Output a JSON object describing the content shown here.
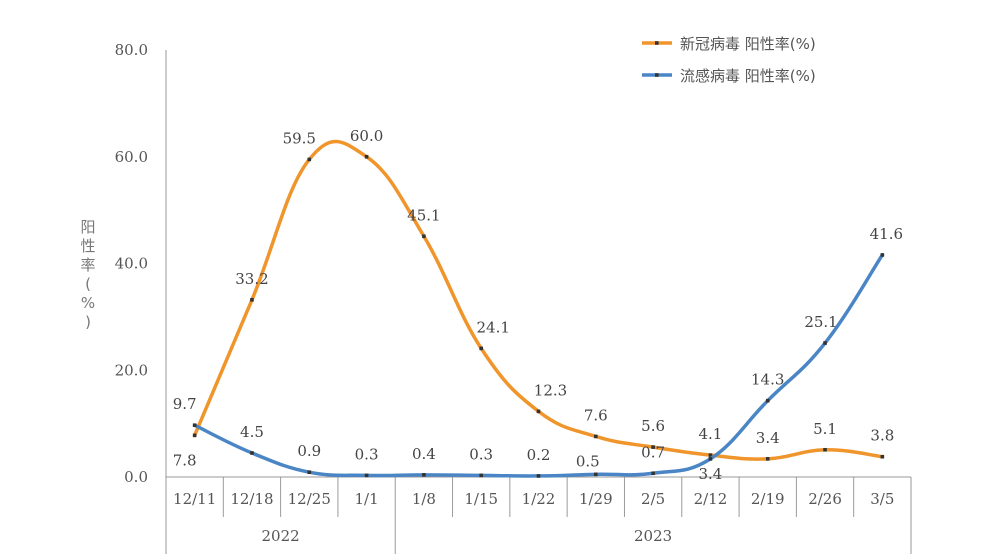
{
  "chart_data": {
    "type": "line",
    "categories": [
      "12/11",
      "12/18",
      "12/25",
      "1/1",
      "1/8",
      "1/15",
      "1/22",
      "1/29",
      "2/5",
      "2/12",
      "2/19",
      "2/26",
      "3/5"
    ],
    "year_groups": [
      {
        "label": "2022",
        "start": 0,
        "end": 3
      },
      {
        "label": "2023",
        "start": 4,
        "end": 12
      }
    ],
    "series": [
      {
        "name": "新冠病毒 阳性率(%)",
        "color": "#f0952b",
        "values": [
          7.8,
          33.2,
          59.5,
          60.0,
          45.1,
          24.1,
          12.3,
          7.6,
          5.6,
          4.1,
          3.4,
          5.1,
          3.8
        ],
        "labels": [
          "7.8",
          "33.2",
          "59.5",
          "60.0",
          "45.1",
          "24.1",
          "12.3",
          "7.6",
          "5.6",
          "4.1",
          "3.4",
          "5.1",
          "3.8"
        ]
      },
      {
        "name": "流感病毒 阳性率(%)",
        "color": "#4a86c5",
        "values": [
          9.7,
          4.5,
          0.9,
          0.3,
          0.4,
          0.3,
          0.2,
          0.5,
          0.7,
          3.4,
          14.3,
          25.1,
          41.6
        ],
        "labels": [
          "9.7",
          "4.5",
          "0.9",
          "0.3",
          "0.4",
          "0.3",
          "0.2",
          "0.5",
          "0.7",
          "3.4",
          "14.3",
          "25.1",
          "41.6"
        ]
      }
    ],
    "ylabel": "阳性率(%)",
    "ylim": [
      0,
      80
    ],
    "yticks": [
      0,
      20,
      40,
      60,
      80
    ],
    "ytick_labels": [
      "0.0",
      "20.0",
      "40.0",
      "60.0",
      "80.0"
    ],
    "legend_position": "top-right",
    "grid": false
  }
}
